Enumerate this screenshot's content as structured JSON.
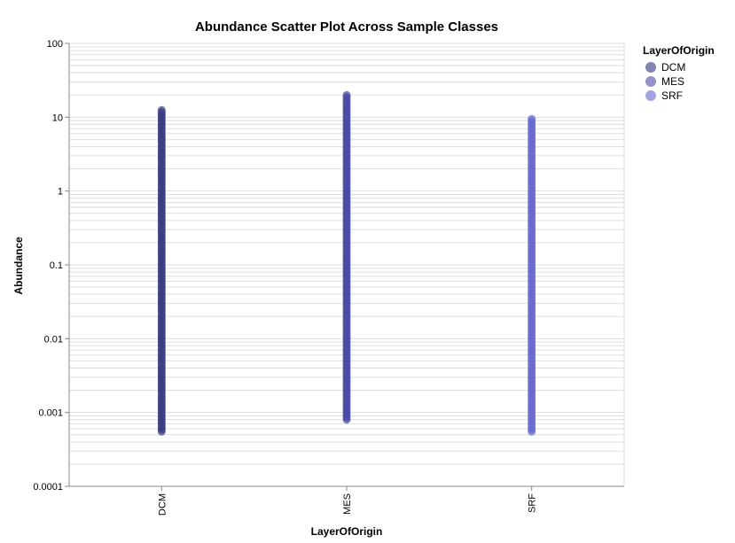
{
  "chart_data": {
    "type": "scatter",
    "title": "Abundance Scatter Plot Across Sample Classes",
    "xlabel": "LayerOfOrigin",
    "ylabel": "Abundance",
    "yscale": "log",
    "ylim": [
      0.0001,
      100
    ],
    "ytick_labels": [
      "100",
      "10",
      "1",
      "0.1",
      "0.01",
      "0.001",
      "0.0001"
    ],
    "categories": [
      "DCM",
      "MES",
      "SRF"
    ],
    "grid": true,
    "legend_title": "LayerOfOrigin",
    "legend_position": "right",
    "series": [
      {
        "name": "DCM",
        "color": "#3a3a80",
        "legend_color": "#8484b2",
        "min": 0.00055,
        "max": 12.5
      },
      {
        "name": "MES",
        "color": "#4848a4",
        "legend_color": "#9393c9",
        "min": 0.0008,
        "max": 20
      },
      {
        "name": "SRF",
        "color": "#6a6ad0",
        "legend_color": "#a4a4e0",
        "min": 0.00055,
        "max": 9.5
      }
    ]
  }
}
